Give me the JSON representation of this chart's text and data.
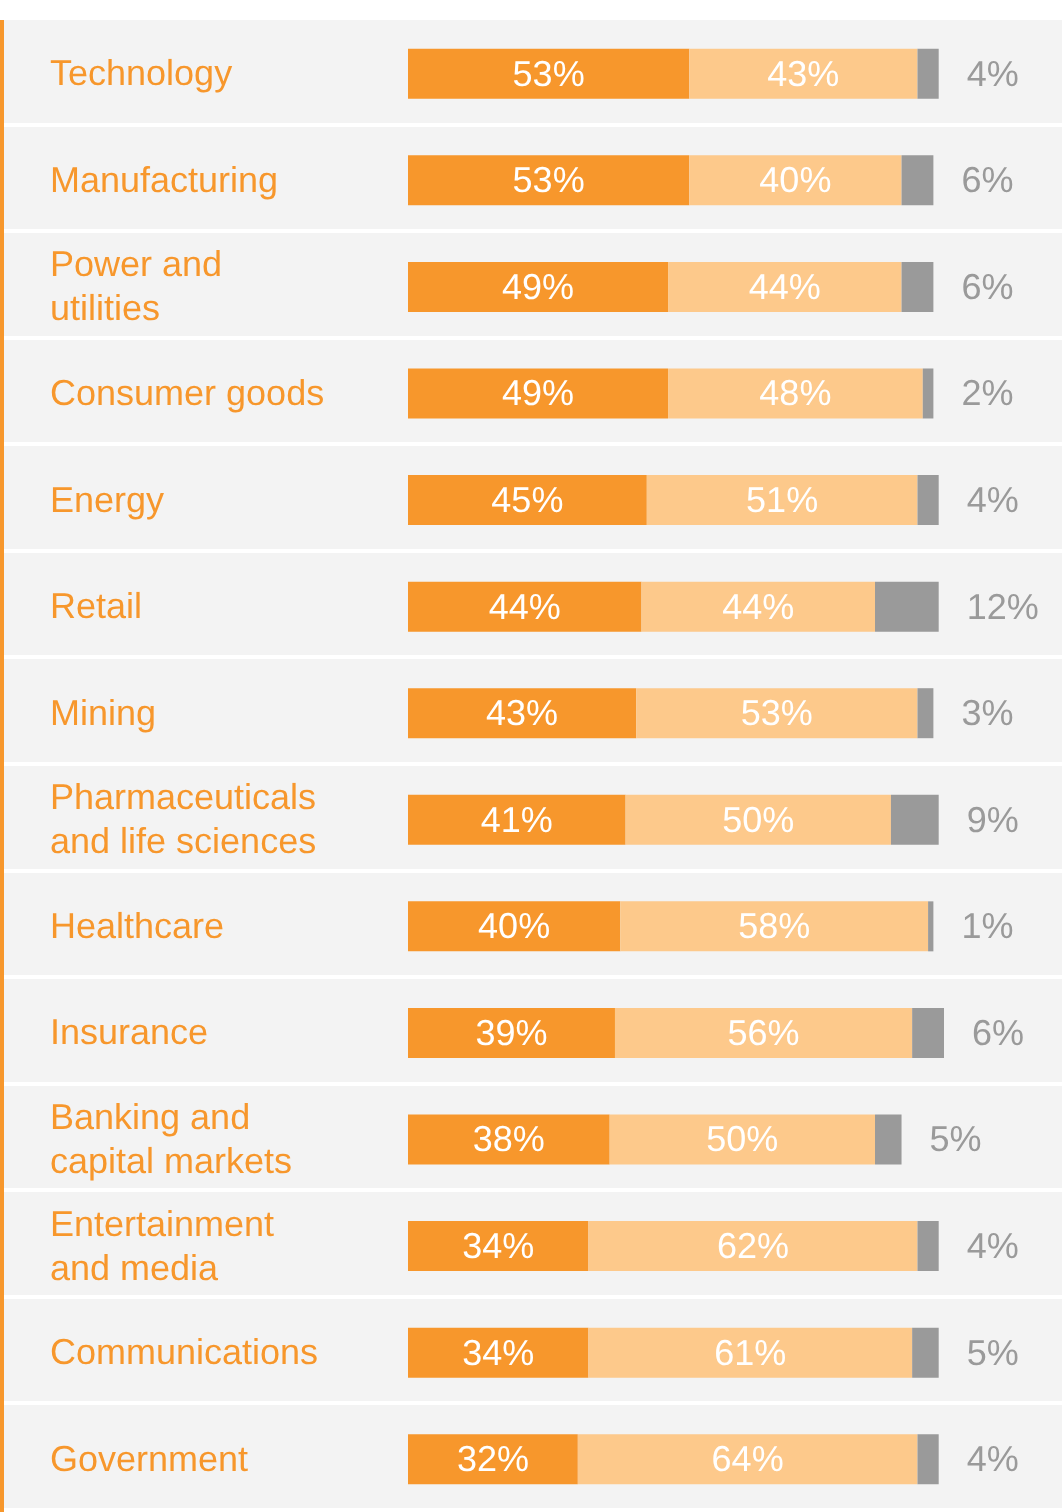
{
  "chart_data": {
    "type": "bar",
    "orientation": "horizontal",
    "stacked": true,
    "categories": [
      "Technology",
      "Manufacturing",
      "Power and\nutilities",
      "Consumer goods",
      "Energy",
      "Retail",
      "Mining",
      "Pharmaceuticals\nand life sciences",
      "Healthcare",
      "Insurance",
      "Banking and\ncapital markets",
      "Entertainment\nand media",
      "Communications",
      "Government"
    ],
    "series": [
      {
        "color": "#f7972c",
        "values": [
          53,
          53,
          49,
          49,
          45,
          44,
          43,
          41,
          40,
          39,
          38,
          34,
          34,
          32
        ],
        "value_labels": [
          "53%",
          "53%",
          "49%",
          "49%",
          "45%",
          "44%",
          "43%",
          "41%",
          "40%",
          "39%",
          "38%",
          "34%",
          "34%",
          "32%"
        ]
      },
      {
        "color": "#fdc98b",
        "values": [
          43,
          40,
          44,
          48,
          51,
          44,
          53,
          50,
          58,
          56,
          50,
          62,
          61,
          64
        ],
        "value_labels": [
          "43%",
          "40%",
          "44%",
          "48%",
          "51%",
          "44%",
          "53%",
          "50%",
          "58%",
          "56%",
          "50%",
          "62%",
          "61%",
          "64%"
        ]
      },
      {
        "color": "#9a9a9a",
        "values": [
          4,
          6,
          6,
          2,
          4,
          12,
          3,
          9,
          1,
          6,
          5,
          4,
          5,
          4
        ],
        "value_labels": [
          "4%",
          "6%",
          "6%",
          "2%",
          "4%",
          "12%",
          "3%",
          "9%",
          "1%",
          "6%",
          "5%",
          "4%",
          "5%",
          "4%"
        ]
      }
    ]
  }
}
